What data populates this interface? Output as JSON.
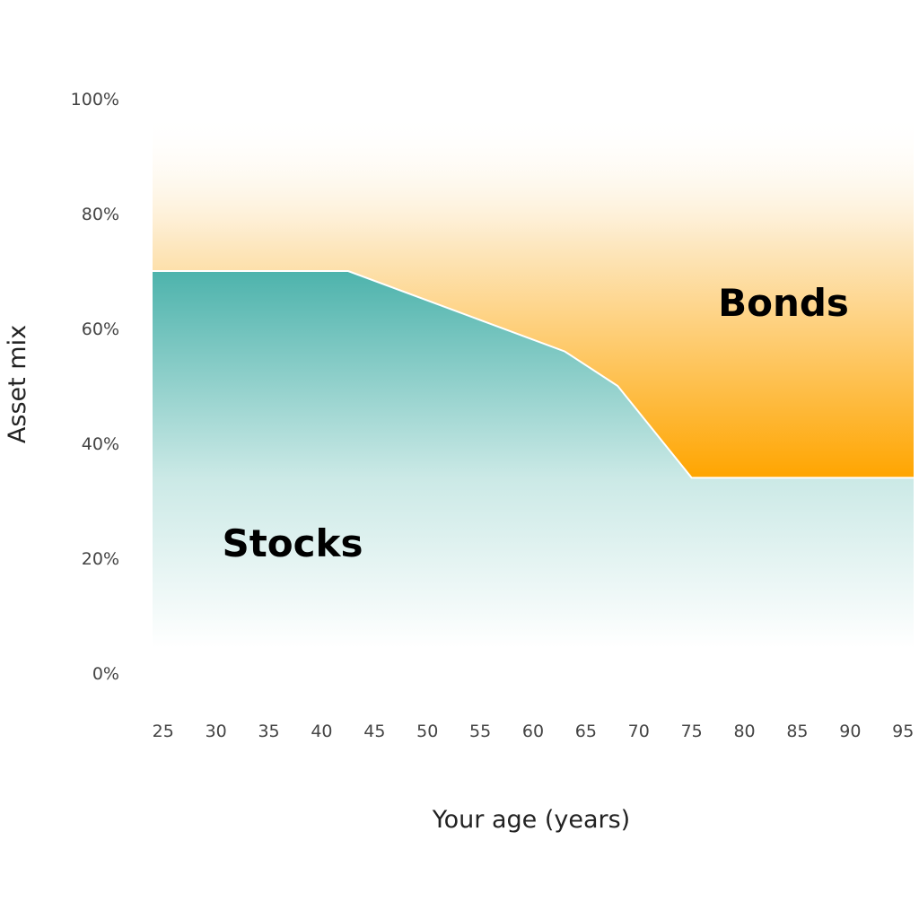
{
  "chart_data": {
    "type": "area",
    "xlabel": "Your age (years)",
    "ylabel": "Asset mix",
    "x_ticks": [
      "25",
      "30",
      "35",
      "40",
      "45",
      "50",
      "55",
      "60",
      "65",
      "70",
      "75",
      "80",
      "85",
      "90",
      "95"
    ],
    "y_ticks": [
      "0%",
      "20%",
      "40%",
      "60%",
      "80%",
      "100%"
    ],
    "xlim": [
      24,
      96
    ],
    "ylim": [
      0,
      100
    ],
    "series": [
      {
        "name": "Stocks",
        "color": "#4db3ac",
        "x": [
          24,
          42.5,
          63,
          68,
          75,
          96
        ],
        "y": [
          70,
          70,
          56,
          50,
          34,
          34
        ]
      },
      {
        "name": "Bonds",
        "color": "#ffa500",
        "x": [
          24,
          42.5,
          63,
          68,
          75,
          96
        ],
        "y": [
          30,
          30,
          44,
          50,
          66,
          66
        ]
      }
    ]
  }
}
